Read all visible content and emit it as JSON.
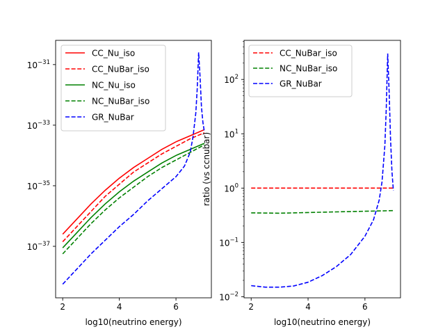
{
  "chart_data": [
    {
      "type": "line",
      "title": "",
      "xlabel": "log10(neutrino energy)",
      "ylabel": "",
      "yscale": "log",
      "xlim": [
        1.75,
        7.25
      ],
      "ylim_exp": [
        -38.7,
        -30.2
      ],
      "xticks": [
        2,
        4,
        6
      ],
      "xtick_labels": [
        "2",
        "4",
        "6"
      ],
      "yticks_exp": [
        -37,
        -35,
        -33,
        -31
      ],
      "ytick_labels": [
        {
          "base": "10",
          "exp": "−37"
        },
        {
          "base": "10",
          "exp": "−35"
        },
        {
          "base": "10",
          "exp": "−33"
        },
        {
          "base": "10",
          "exp": "−31"
        }
      ],
      "legend_position": "upper-left",
      "series": [
        {
          "name": "CC_Nu_iso",
          "color": "#ff0000",
          "dash": "solid",
          "x": [
            2,
            2.5,
            3,
            3.5,
            4,
            4.5,
            5,
            5.5,
            6,
            6.5,
            7
          ],
          "log10_y": [
            -36.6,
            -36.1,
            -35.6,
            -35.15,
            -34.75,
            -34.4,
            -34.1,
            -33.8,
            -33.55,
            -33.35,
            -33.15
          ]
        },
        {
          "name": "CC_NuBar_iso",
          "color": "#ff0000",
          "dash": "dashed",
          "x": [
            2,
            2.5,
            3,
            3.5,
            4,
            4.5,
            5,
            5.5,
            6,
            6.5,
            7
          ],
          "log10_y": [
            -36.85,
            -36.35,
            -35.85,
            -35.35,
            -34.95,
            -34.55,
            -34.25,
            -33.95,
            -33.7,
            -33.45,
            -33.25
          ]
        },
        {
          "name": "NC_Nu_iso",
          "color": "#008000",
          "dash": "solid",
          "x": [
            2,
            2.5,
            3,
            3.5,
            4,
            4.5,
            5,
            5.5,
            6,
            6.5,
            7
          ],
          "log10_y": [
            -37.05,
            -36.55,
            -36.05,
            -35.6,
            -35.2,
            -34.85,
            -34.55,
            -34.25,
            -34.0,
            -33.8,
            -33.6
          ]
        },
        {
          "name": "NC_NuBar_iso",
          "color": "#008000",
          "dash": "dashed",
          "x": [
            2,
            2.5,
            3,
            3.5,
            4,
            4.5,
            5,
            5.5,
            6,
            6.5,
            7
          ],
          "log10_y": [
            -37.25,
            -36.75,
            -36.25,
            -35.8,
            -35.4,
            -35.05,
            -34.7,
            -34.4,
            -34.15,
            -33.9,
            -33.65
          ]
        },
        {
          "name": "GR_NuBar",
          "color": "#0000ff",
          "dash": "dashed",
          "x": [
            2,
            2.5,
            3,
            3.5,
            4,
            4.5,
            5,
            5.5,
            6,
            6.3,
            6.5,
            6.6,
            6.7,
            6.75,
            6.8,
            6.85,
            6.9,
            6.95,
            7
          ],
          "log10_y": [
            -38.25,
            -37.75,
            -37.25,
            -36.8,
            -36.35,
            -35.95,
            -35.5,
            -35.1,
            -34.7,
            -34.35,
            -33.9,
            -33.4,
            -32.6,
            -31.8,
            -30.6,
            -31.4,
            -32.4,
            -32.9,
            -33.2
          ]
        }
      ]
    },
    {
      "type": "line",
      "title": "",
      "xlabel": "log10(neutrino energy)",
      "ylabel": "ratio (vs ccnubar)",
      "yscale": "log",
      "xlim": [
        1.75,
        7.25
      ],
      "ylim_exp": [
        -2.02,
        2.72
      ],
      "xticks": [
        2,
        4,
        6
      ],
      "xtick_labels": [
        "2",
        "4",
        "6"
      ],
      "yticks_exp": [
        -2,
        -1,
        0,
        1,
        2
      ],
      "ytick_labels": [
        {
          "base": "10",
          "exp": "−2"
        },
        {
          "base": "10",
          "exp": "−1"
        },
        {
          "base": "10",
          "exp": "0"
        },
        {
          "base": "10",
          "exp": "1"
        },
        {
          "base": "10",
          "exp": "2"
        }
      ],
      "legend_position": "upper-left",
      "series": [
        {
          "name": "CC_NuBar_iso",
          "color": "#ff0000",
          "dash": "dashed",
          "x": [
            2,
            3,
            4,
            5,
            6,
            7
          ],
          "y": [
            1.0,
            1.0,
            1.0,
            1.0,
            1.0,
            1.0
          ]
        },
        {
          "name": "NC_NuBar_iso",
          "color": "#008000",
          "dash": "dashed",
          "x": [
            2,
            3,
            4,
            5,
            6,
            7
          ],
          "y": [
            0.35,
            0.345,
            0.355,
            0.365,
            0.375,
            0.385
          ]
        },
        {
          "name": "GR_NuBar",
          "color": "#0000ff",
          "dash": "dashed",
          "x": [
            2,
            2.5,
            3,
            3.5,
            4,
            4.5,
            5,
            5.5,
            6,
            6.3,
            6.5,
            6.6,
            6.7,
            6.75,
            6.8,
            6.85,
            6.9,
            6.95,
            7
          ],
          "y": [
            0.016,
            0.015,
            0.015,
            0.0158,
            0.0185,
            0.0245,
            0.036,
            0.06,
            0.13,
            0.26,
            0.6,
            1.3,
            6,
            30,
            300,
            60,
            8,
            2,
            0.9
          ]
        }
      ]
    }
  ]
}
